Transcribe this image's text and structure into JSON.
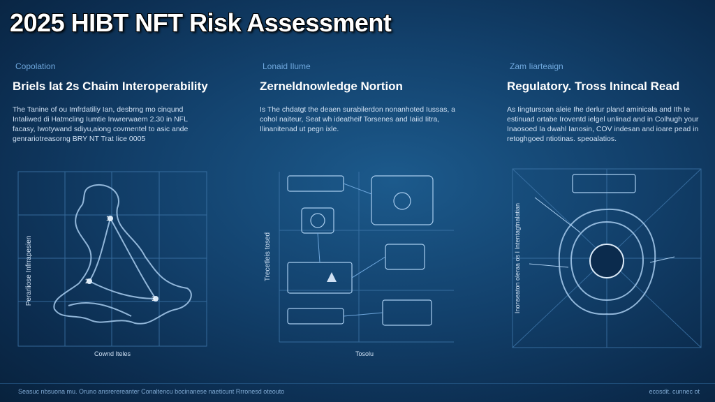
{
  "title": "2025 HIBT NFT Risk Assessment",
  "panels": [
    {
      "kicker": "Copolation",
      "title": "Briels lat 2s Chaim Interoperability",
      "description": "The Tanine of ou Imfrdatiliy Ian, desbrng mo cinqund Intaliwed di Hatmcling Iumtie Inwrerwaem 2.30 in NFL facasy, Iwotywand sdiyu,aiong covmentel to asic ande genrariotreasorng BRY NT Trat Iice 0005",
      "y_label": "Perarliose Infrrapesien",
      "x_label": "Cownd Iteles",
      "nodes": [
        "1",
        "2",
        "3"
      ]
    },
    {
      "kicker": "Lonaid Ilume",
      "title": "Zerneldnowledge Nortion",
      "description": "Is The chdatgt the deaen surabilerdon nonanhoted Iussas, a cohol naiteur, Seat wh ideatheif Torsenes and Iaiid Iitra, Ilinanitenad ut pegn ixle.",
      "y_label": "Trecetleis tosed",
      "x_label": "Tosolu"
    },
    {
      "kicker": "Zam Iiarteaign",
      "title": "Regulatory. Tross Inincal Read",
      "description": "As Iingtursoan aleie Ihe derlur pland aminicala and Ith Ie estinuad ortabe Iroventd ielgel unlinad and in Colhugh your Inaosoed Ia dwahl Ianosin, COV indesan and ioare pead in retoghgoed ntiotinas. speoalatios.",
      "y_label": "Inonseaton oleraa os I Intentagtnalatian",
      "x_label": ""
    }
  ],
  "footer": {
    "left": "Seasuc nbsuona mu. Oruno ansrerereanter Conaltencu bocinanese naeticunt Rrronesd oteouto",
    "right": "ecosdit. cunnec ot"
  },
  "colors": {
    "background": "#12406b",
    "line": "#8ab8e6",
    "grid": "#3f77ab",
    "text": "#ffffff"
  }
}
